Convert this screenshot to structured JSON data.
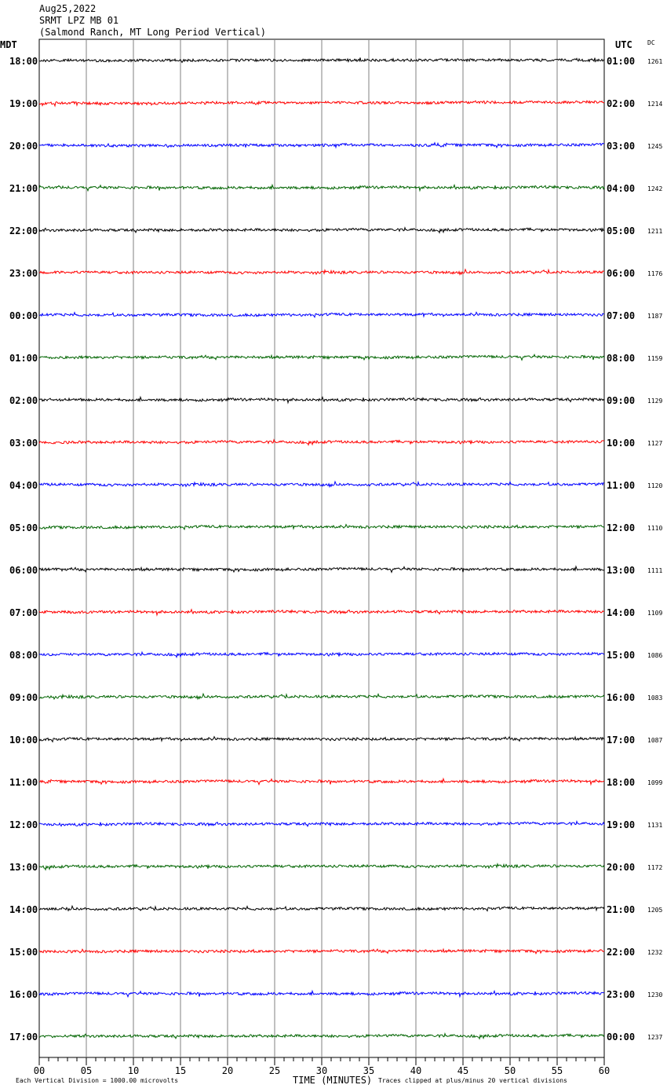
{
  "header": {
    "date": "Aug25,2022",
    "station": "SRMT LPZ MB 01",
    "location": "(Salmond Ranch, MT Long Period Vertical)"
  },
  "left_axis_label": "MDT",
  "right_axis_label": "UTC",
  "dc_label": "DC",
  "footer": {
    "scale_note": "Each Vertical Division = 1000.00 microvolts",
    "clip_note": "Traces clipped at plus/minus 20 vertical divisions",
    "x_title": "TIME (MINUTES)"
  },
  "chart_data": {
    "type": "line",
    "title": "SRMT LPZ MB 01",
    "xlabel": "TIME (MINUTES)",
    "xlim": [
      0,
      60
    ],
    "x_ticks": [
      "00",
      "05",
      "10",
      "15",
      "20",
      "25",
      "30",
      "35",
      "40",
      "45",
      "50",
      "55",
      "60"
    ],
    "grid": "vertical lines every 5 minutes",
    "trace_colors": [
      "#000000",
      "#ff0000",
      "#0000ff",
      "#006400"
    ],
    "rows": [
      {
        "mdt": "18:00",
        "utc": "01:00",
        "dc": "1261"
      },
      {
        "mdt": "19:00",
        "utc": "02:00",
        "dc": "1214"
      },
      {
        "mdt": "20:00",
        "utc": "03:00",
        "dc": "1245"
      },
      {
        "mdt": "21:00",
        "utc": "04:00",
        "dc": "1242"
      },
      {
        "mdt": "22:00",
        "utc": "05:00",
        "dc": "1211"
      },
      {
        "mdt": "23:00",
        "utc": "06:00",
        "dc": "1176"
      },
      {
        "mdt": "00:00",
        "utc": "07:00",
        "dc": "1187"
      },
      {
        "mdt": "01:00",
        "utc": "08:00",
        "dc": "1159"
      },
      {
        "mdt": "02:00",
        "utc": "09:00",
        "dc": "1129"
      },
      {
        "mdt": "03:00",
        "utc": "10:00",
        "dc": "1127"
      },
      {
        "mdt": "04:00",
        "utc": "11:00",
        "dc": "1120"
      },
      {
        "mdt": "05:00",
        "utc": "12:00",
        "dc": "1110"
      },
      {
        "mdt": "06:00",
        "utc": "13:00",
        "dc": "1111"
      },
      {
        "mdt": "07:00",
        "utc": "14:00",
        "dc": "1109"
      },
      {
        "mdt": "08:00",
        "utc": "15:00",
        "dc": "1086"
      },
      {
        "mdt": "09:00",
        "utc": "16:00",
        "dc": "1083"
      },
      {
        "mdt": "10:00",
        "utc": "17:00",
        "dc": "1087"
      },
      {
        "mdt": "11:00",
        "utc": "18:00",
        "dc": "1099"
      },
      {
        "mdt": "12:00",
        "utc": "19:00",
        "dc": "1131"
      },
      {
        "mdt": "13:00",
        "utc": "20:00",
        "dc": "1172"
      },
      {
        "mdt": "14:00",
        "utc": "21:00",
        "dc": "1205"
      },
      {
        "mdt": "15:00",
        "utc": "22:00",
        "dc": "1232"
      },
      {
        "mdt": "16:00",
        "utc": "23:00",
        "dc": "1230"
      },
      {
        "mdt": "17:00",
        "utc": "00:00",
        "dc": "1237"
      }
    ]
  }
}
